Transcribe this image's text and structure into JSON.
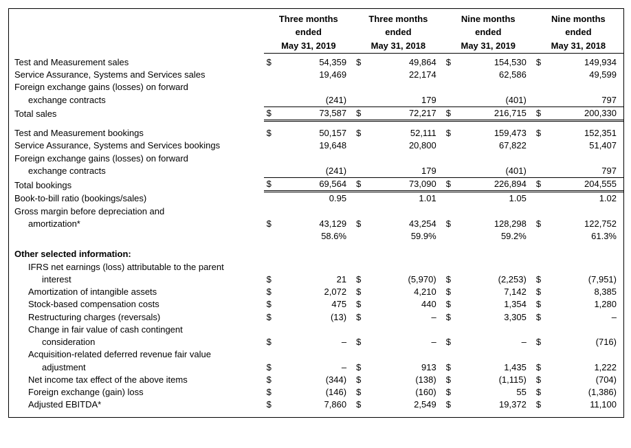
{
  "columns": [
    {
      "line1": "Three months",
      "line2": "ended",
      "line3": "May 31, 2019"
    },
    {
      "line1": "Three months",
      "line2": "ended",
      "line3": "May 31, 2018"
    },
    {
      "line1": "Nine months",
      "line2": "ended",
      "line3": "May 31, 2019"
    },
    {
      "line1": "Nine months",
      "line2": "ended",
      "line3": "May 31, 2018"
    }
  ],
  "rows": [
    {
      "kind": "row",
      "label": "Test and Measurement sales",
      "cur": [
        "$",
        "$",
        "$",
        "$"
      ],
      "vals": [
        "54,359",
        "49,864",
        "154,530",
        "149,934"
      ]
    },
    {
      "kind": "row",
      "label": "Service Assurance, Systems and Services sales",
      "cur": [
        "",
        "",
        "",
        ""
      ],
      "vals": [
        "19,469",
        "22,174",
        "62,586",
        "49,599"
      ]
    },
    {
      "kind": "wrap",
      "label": "Foreign exchange gains (losses) on forward",
      "label2": "exchange contracts",
      "cur": [
        "",
        "",
        "",
        ""
      ],
      "vals": [
        "(241)",
        "179",
        "(401)",
        "797"
      ]
    },
    {
      "kind": "total-dbl",
      "label": "Total sales",
      "cur": [
        "$",
        "$",
        "$",
        "$"
      ],
      "vals": [
        "73,587",
        "72,217",
        "216,715",
        "200,330"
      ]
    },
    {
      "kind": "blank"
    },
    {
      "kind": "row",
      "label": "Test and Measurement bookings",
      "cur": [
        "$",
        "$",
        "$",
        "$"
      ],
      "vals": [
        "50,157",
        "52,111",
        "159,473",
        "152,351"
      ]
    },
    {
      "kind": "row",
      "label": "Service Assurance, Systems and Services bookings",
      "cur": [
        "",
        "",
        "",
        ""
      ],
      "vals": [
        "19,648",
        "20,800",
        "67,822",
        "51,407"
      ]
    },
    {
      "kind": "wrap",
      "label": "Foreign exchange gains (losses) on forward",
      "label2": "exchange contracts",
      "cur": [
        "",
        "",
        "",
        ""
      ],
      "vals": [
        "(241)",
        "179",
        "(401)",
        "797"
      ]
    },
    {
      "kind": "total-dbl",
      "label": "Total bookings",
      "cur": [
        "$",
        "$",
        "$",
        "$"
      ],
      "vals": [
        "69,564",
        "73,090",
        "226,894",
        "204,555"
      ]
    },
    {
      "kind": "row",
      "label": "Book-to-bill ratio (bookings/sales)",
      "cur": [
        "",
        "",
        "",
        ""
      ],
      "vals": [
        "0.95",
        "1.01",
        "1.05",
        "1.02"
      ]
    },
    {
      "kind": "wrap",
      "label": "Gross margin before depreciation and",
      "label2": "amortization*",
      "cur": [
        "$",
        "$",
        "$",
        "$"
      ],
      "vals": [
        "43,129",
        "43,254",
        "128,298",
        "122,752"
      ]
    },
    {
      "kind": "row",
      "label": "",
      "cur": [
        "",
        "",
        "",
        ""
      ],
      "vals": [
        "58.6%",
        "59.9%",
        "59.2%",
        "61.3%"
      ]
    },
    {
      "kind": "blank"
    },
    {
      "kind": "section",
      "label": "Other selected information:"
    },
    {
      "kind": "wrap-i",
      "label": "IFRS net earnings (loss) attributable to the parent",
      "label2": "interest",
      "cur": [
        "$",
        "$",
        "$",
        "$"
      ],
      "vals": [
        "21",
        "(5,970)",
        "(2,253)",
        "(7,951)"
      ]
    },
    {
      "kind": "row-i",
      "label": "Amortization of intangible assets",
      "cur": [
        "$",
        "$",
        "$",
        "$"
      ],
      "vals": [
        "2,072",
        "4,210",
        "7,142",
        "8,385"
      ]
    },
    {
      "kind": "row-i",
      "label": "Stock-based compensation costs",
      "cur": [
        "$",
        "$",
        "$",
        "$"
      ],
      "vals": [
        "475",
        "440",
        "1,354",
        "1,280"
      ]
    },
    {
      "kind": "row-i",
      "label": "Restructuring charges (reversals)",
      "cur": [
        "$",
        "$",
        "$",
        "$"
      ],
      "vals": [
        "(13)",
        "–",
        "3,305",
        "–"
      ]
    },
    {
      "kind": "wrap-i",
      "label": "Change in fair value of cash contingent",
      "label2": "consideration",
      "cur": [
        "$",
        "$",
        "$",
        "$"
      ],
      "vals": [
        "–",
        "–",
        "–",
        "(716)"
      ]
    },
    {
      "kind": "wrap-i",
      "label": "Acquisition-related deferred revenue fair value",
      "label2": "adjustment",
      "cur": [
        "$",
        "$",
        "$",
        "$"
      ],
      "vals": [
        "–",
        "913",
        "1,435",
        "1,222"
      ]
    },
    {
      "kind": "row-i",
      "label": "Net income tax effect of the above items",
      "cur": [
        "$",
        "$",
        "$",
        "$"
      ],
      "vals": [
        "(344)",
        "(138)",
        "(1,115)",
        "(704)"
      ]
    },
    {
      "kind": "row-i",
      "label": "Foreign exchange (gain) loss",
      "cur": [
        "$",
        "$",
        "$",
        "$"
      ],
      "vals": [
        "(146)",
        "(160)",
        "55",
        "(1,386)"
      ]
    },
    {
      "kind": "row-i",
      "label": "Adjusted EBITDA*",
      "cur": [
        "$",
        "$",
        "$",
        "$"
      ],
      "vals": [
        "7,860",
        "2,549",
        "19,372",
        "11,100"
      ]
    }
  ]
}
